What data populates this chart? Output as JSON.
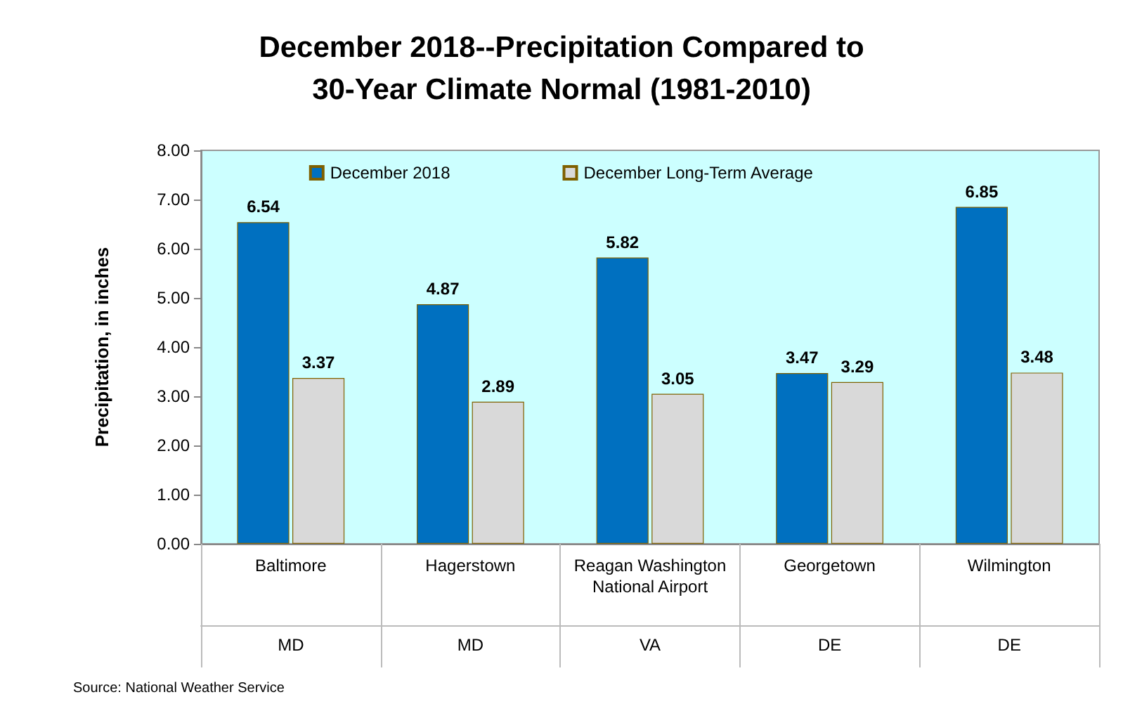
{
  "chart_data": {
    "type": "bar",
    "title": "December 2018--Precipitation Compared to\n30-Year Climate Normal (1981-2010)",
    "ylabel": "Precipitation, in inches",
    "categories": [
      "Baltimore",
      "Hagerstown",
      "Reagan Washington\nNational Airport",
      "Georgetown",
      "Wilmington"
    ],
    "series": [
      {
        "name": "December 2018",
        "color": "#0070c0",
        "values": [
          6.54,
          4.87,
          5.82,
          3.47,
          6.85
        ]
      },
      {
        "name": "December Long-Term Average",
        "color": "#d9d9d9",
        "values": [
          3.37,
          2.89,
          3.05,
          3.29,
          3.48
        ]
      }
    ],
    "ylim": [
      0,
      8
    ],
    "yticks": [
      {
        "value": 0,
        "label": "0.00"
      },
      {
        "value": 1,
        "label": "1.00"
      },
      {
        "value": 2,
        "label": "2.00"
      },
      {
        "value": 3,
        "label": "3.00"
      },
      {
        "value": 4,
        "label": "4.00"
      },
      {
        "value": 5,
        "label": "5.00"
      },
      {
        "value": 6,
        "label": "6.00"
      },
      {
        "value": 7,
        "label": "7.00"
      },
      {
        "value": 8,
        "label": "8.00"
      }
    ],
    "data_labels": true,
    "legend": "top",
    "grid": false,
    "annotations": [
      "MD",
      "MD",
      "VA",
      "DE",
      "DE",
      "Source: National Weather Service"
    ]
  }
}
